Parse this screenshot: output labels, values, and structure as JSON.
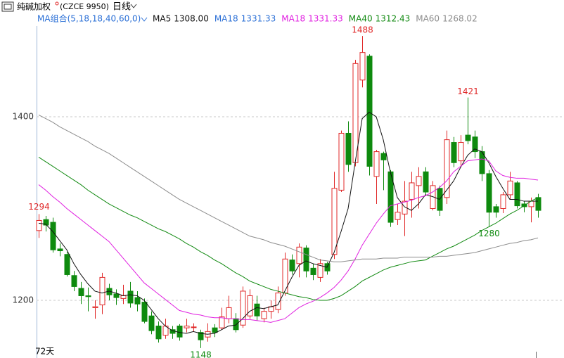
{
  "chart_data": {
    "type": "candlestick",
    "title": "纯碱加权",
    "subtitle": "(CZCE 9950)",
    "period": "日线",
    "indicator": "MA组合(5,18,18,40,60,0)",
    "range_label": "72天",
    "ylim": [
      1140,
      1500
    ],
    "yticks": [
      1200,
      1400
    ],
    "grid": true,
    "up_color": "#e02828",
    "down_color": "#0e8a0e",
    "open": [
      1276,
      1288,
      1285,
      1256,
      1250,
      1227,
      1213,
      1205,
      1192,
      1195,
      1213,
      1207,
      1202,
      1210,
      1203,
      1198,
      1183,
      1172,
      1162,
      1168,
      1172,
      1170,
      1171,
      1165,
      1160,
      1170,
      1170,
      1180,
      1180,
      1173,
      1183,
      1196,
      1180,
      1188,
      1190,
      1208,
      1244,
      1240,
      1257,
      1235,
      1225,
      1240,
      1250,
      1320,
      1382,
      1350,
      1440,
      1466,
      1335,
      1360,
      1340,
      1288,
      1294,
      1310,
      1325,
      1340,
      1300,
      1322,
      1312,
      1372,
      1352,
      1380,
      1378,
      1362,
      1338,
      1302,
      1300,
      1315,
      1328,
      1305,
      1302,
      1312
    ],
    "high": [
      1294,
      1292,
      1290,
      1262,
      1253,
      1232,
      1220,
      1214,
      1200,
      1230,
      1218,
      1212,
      1217,
      1220,
      1210,
      1202,
      1188,
      1177,
      1180,
      1172,
      1174,
      1180,
      1175,
      1168,
      1175,
      1174,
      1192,
      1205,
      1186,
      1215,
      1212,
      1205,
      1192,
      1200,
      1215,
      1252,
      1250,
      1262,
      1260,
      1240,
      1245,
      1242,
      1340,
      1385,
      1395,
      1462,
      1488,
      1468,
      1364,
      1362,
      1342,
      1305,
      1330,
      1340,
      1345,
      1345,
      1330,
      1325,
      1385,
      1378,
      1380,
      1421,
      1385,
      1368,
      1342,
      1305,
      1318,
      1340,
      1330,
      1308,
      1312,
      1316
    ],
    "low": [
      1268,
      1275,
      1252,
      1248,
      1226,
      1210,
      1196,
      1188,
      1180,
      1185,
      1200,
      1195,
      1196,
      1192,
      1188,
      1175,
      1163,
      1154,
      1158,
      1158,
      1156,
      1165,
      1166,
      1148,
      1155,
      1160,
      1168,
      1175,
      1165,
      1170,
      1180,
      1178,
      1176,
      1180,
      1186,
      1205,
      1228,
      1225,
      1225,
      1222,
      1220,
      1228,
      1245,
      1318,
      1340,
      1346,
      1432,
      1336,
      1305,
      1320,
      1280,
      1282,
      1270,
      1290,
      1300,
      1315,
      1298,
      1292,
      1305,
      1345,
      1345,
      1370,
      1355,
      1330,
      1280,
      1290,
      1295,
      1310,
      1300,
      1296,
      1285,
      1290
    ],
    "close": [
      1287,
      1282,
      1255,
      1254,
      1228,
      1215,
      1205,
      1204,
      1193,
      1225,
      1206,
      1203,
      1205,
      1197,
      1196,
      1177,
      1167,
      1158,
      1172,
      1164,
      1160,
      1172,
      1171,
      1157,
      1166,
      1165,
      1182,
      1192,
      1168,
      1210,
      1205,
      1183,
      1188,
      1193,
      1208,
      1245,
      1232,
      1258,
      1232,
      1228,
      1240,
      1232,
      1322,
      1382,
      1348,
      1458,
      1470,
      1346,
      1362,
      1353,
      1285,
      1296,
      1308,
      1328,
      1335,
      1318,
      1325,
      1298,
      1375,
      1350,
      1372,
      1374,
      1362,
      1338,
      1296,
      1296,
      1315,
      1330,
      1303,
      1302,
      1308,
      1298
    ],
    "series": [
      {
        "name": "MA5",
        "color": "#111111",
        "last": {
          "value": 1308.0,
          "label": "1308.00"
        },
        "values": [
          1284,
          1283,
          1275,
          1265,
          1255,
          1240,
          1228,
          1218,
          1210,
          1208,
          1210,
          1208,
          1205,
          1206,
          1205,
          1200,
          1190,
          1180,
          1172,
          1167,
          1165,
          1164,
          1166,
          1164,
          1163,
          1164,
          1168,
          1172,
          1173,
          1180,
          1188,
          1192,
          1191,
          1193,
          1195,
          1210,
          1225,
          1238,
          1243,
          1240,
          1238,
          1236,
          1252,
          1275,
          1300,
          1350,
          1398,
          1405,
          1400,
          1375,
          1340,
          1312,
          1302,
          1298,
          1305,
          1315,
          1313,
          1310,
          1320,
          1330,
          1345,
          1358,
          1365,
          1362,
          1350,
          1335,
          1322,
          1310,
          1310,
          1308,
          1308,
          1308
        ]
      },
      {
        "name": "MA18",
        "color": "#2a6fd6",
        "last": {
          "value": 1331.33,
          "label": "1331.33"
        }
      },
      {
        "name": "MA18",
        "color": "#e020e0",
        "last": {
          "value": 1331.33,
          "label": "1331.33"
        },
        "values": [
          1326,
          1320,
          1313,
          1307,
          1300,
          1294,
          1288,
          1282,
          1276,
          1270,
          1264,
          1255,
          1246,
          1237,
          1228,
          1219,
          1213,
          1207,
          1201,
          1195,
          1189,
          1187,
          1185,
          1184,
          1182,
          1181,
          1181,
          1180,
          1180,
          1179,
          1179,
          1178,
          1177,
          1176,
          1178,
          1180,
          1186,
          1192,
          1196,
          1199,
          1203,
          1208,
          1214,
          1222,
          1232,
          1245,
          1260,
          1272,
          1284,
          1294,
          1303,
          1305,
          1307,
          1309,
          1312,
          1314,
          1318,
          1323,
          1330,
          1340,
          1346,
          1352,
          1353,
          1354,
          1352,
          1341,
          1336,
          1334,
          1333,
          1333,
          1332,
          1331
        ]
      },
      {
        "name": "MA40",
        "color": "#128a12",
        "last": {
          "value": 1312.43,
          "label": "1312.43"
        },
        "values": [
          1356,
          1351,
          1346,
          1341,
          1336,
          1331,
          1326,
          1320,
          1315,
          1310,
          1305,
          1301,
          1297,
          1293,
          1290,
          1286,
          1282,
          1278,
          1275,
          1271,
          1267,
          1262,
          1258,
          1253,
          1249,
          1244,
          1240,
          1235,
          1230,
          1226,
          1221,
          1218,
          1215,
          1212,
          1210,
          1208,
          1206,
          1204,
          1203,
          1201,
          1200,
          1200,
          1202,
          1205,
          1210,
          1215,
          1221,
          1225,
          1229,
          1233,
          1236,
          1238,
          1240,
          1242,
          1243,
          1244,
          1248,
          1252,
          1256,
          1259,
          1263,
          1267,
          1271,
          1276,
          1280,
          1284,
          1289,
          1294,
          1298,
          1303,
          1308,
          1312
        ]
      },
      {
        "name": "MA60",
        "color": "#8c8c8c",
        "last": {
          "value": 1268.02,
          "label": "1268.02"
        },
        "values": [
          1402,
          1398,
          1394,
          1389,
          1385,
          1381,
          1377,
          1373,
          1368,
          1364,
          1360,
          1355,
          1350,
          1345,
          1340,
          1335,
          1330,
          1325,
          1320,
          1315,
          1310,
          1306,
          1302,
          1298,
          1294,
          1290,
          1286,
          1282,
          1278,
          1274,
          1270,
          1268,
          1266,
          1263,
          1261,
          1259,
          1256,
          1253,
          1250,
          1247,
          1244,
          1243,
          1242,
          1242,
          1243,
          1244,
          1245,
          1245,
          1245,
          1246,
          1246,
          1246,
          1247,
          1247,
          1247,
          1247,
          1247,
          1248,
          1248,
          1249,
          1250,
          1251,
          1252,
          1254,
          1256,
          1258,
          1260,
          1262,
          1263,
          1265,
          1266,
          1268
        ]
      }
    ]
  }
}
